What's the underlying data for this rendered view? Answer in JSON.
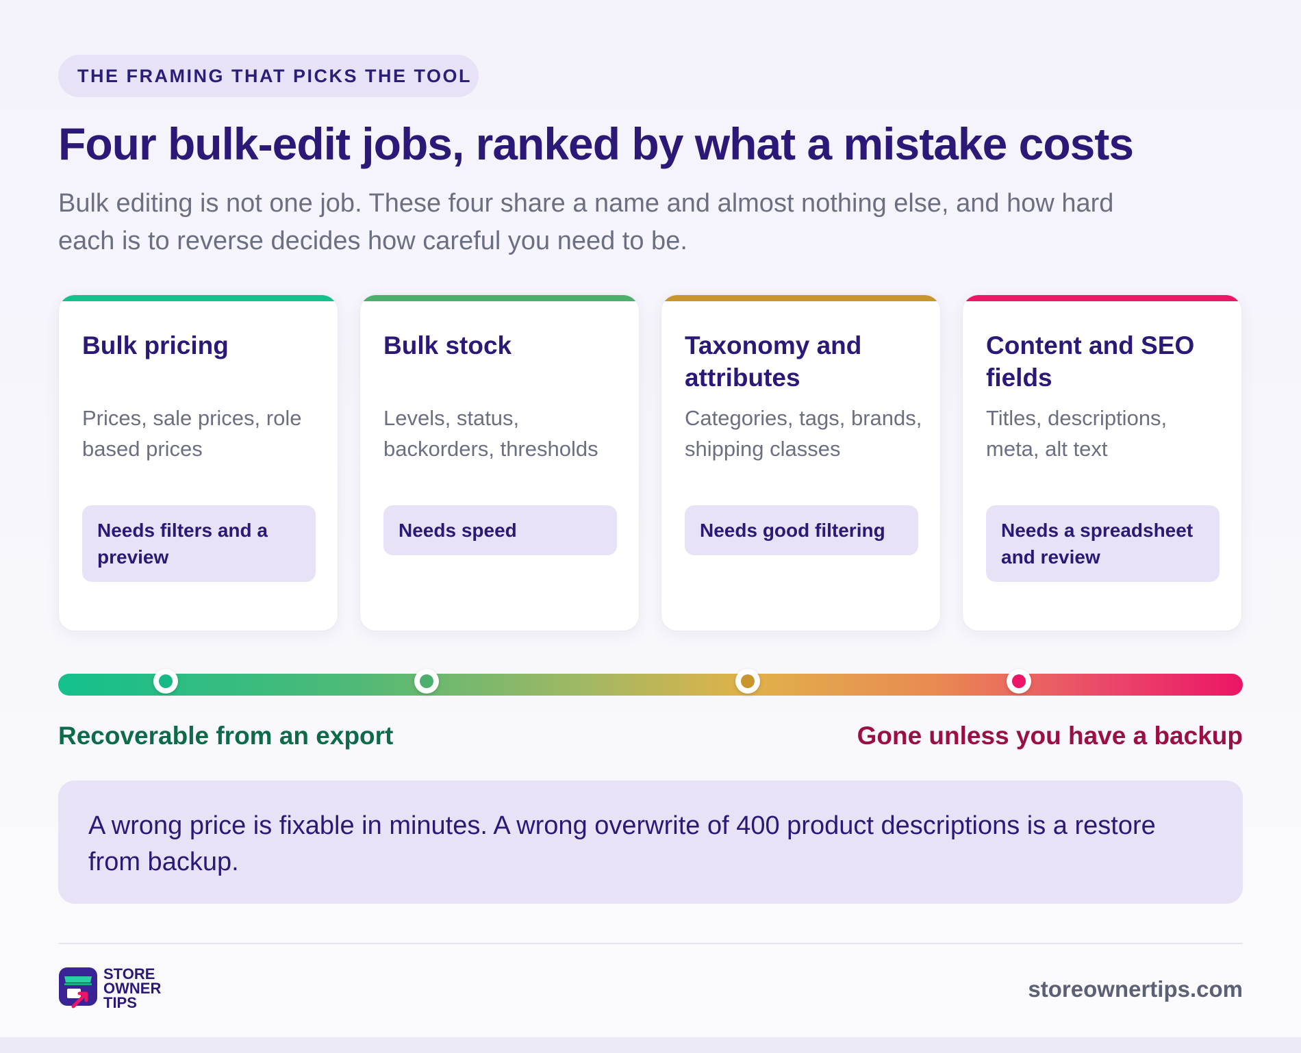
{
  "eyebrow": "THE FRAMING THAT PICKS THE TOOL",
  "title": "Four bulk-edit jobs, ranked by what a mistake costs",
  "subtitle": "Bulk editing is not one job. These four share a name and almost nothing else, and how hard each is to reverse decides how careful you need to be.",
  "cards": [
    {
      "title": "Bulk pricing",
      "description": "Prices, sale prices, role based prices",
      "need": "Needs filters and a preview",
      "accent": "#14c08c"
    },
    {
      "title": "Bulk stock",
      "description": "Levels, status, backorders, thresholds",
      "need": "Needs speed",
      "accent": "#4caf6e"
    },
    {
      "title": "Taxonomy and attributes",
      "description": "Categories, tags, brands, shipping classes",
      "need": "Needs good filtering",
      "accent": "#c9962e"
    },
    {
      "title": "Content and SEO fields",
      "description": "Titles, descriptions, meta, alt text",
      "need": "Needs a spreadsheet and review",
      "accent": "#ec1566"
    }
  ],
  "scale": {
    "left_label": "Recoverable from an export",
    "right_label": "Gone unless you have a backup",
    "markers": [
      {
        "position": 0.091,
        "color": "#14b986"
      },
      {
        "position": 0.311,
        "color": "#4caf6e"
      },
      {
        "position": 0.582,
        "color": "#c9962e"
      },
      {
        "position": 0.811,
        "color": "#ec1566"
      }
    ]
  },
  "callout": "A wrong price is fixable in minutes. A wrong overwrite of 400 product descriptions is a restore from backup.",
  "footer": {
    "logo_lines": [
      "STORE",
      "OWNER",
      "TIPS"
    ],
    "logo_icon": "storefront-arrow-icon",
    "site": "storeownertips.com"
  }
}
